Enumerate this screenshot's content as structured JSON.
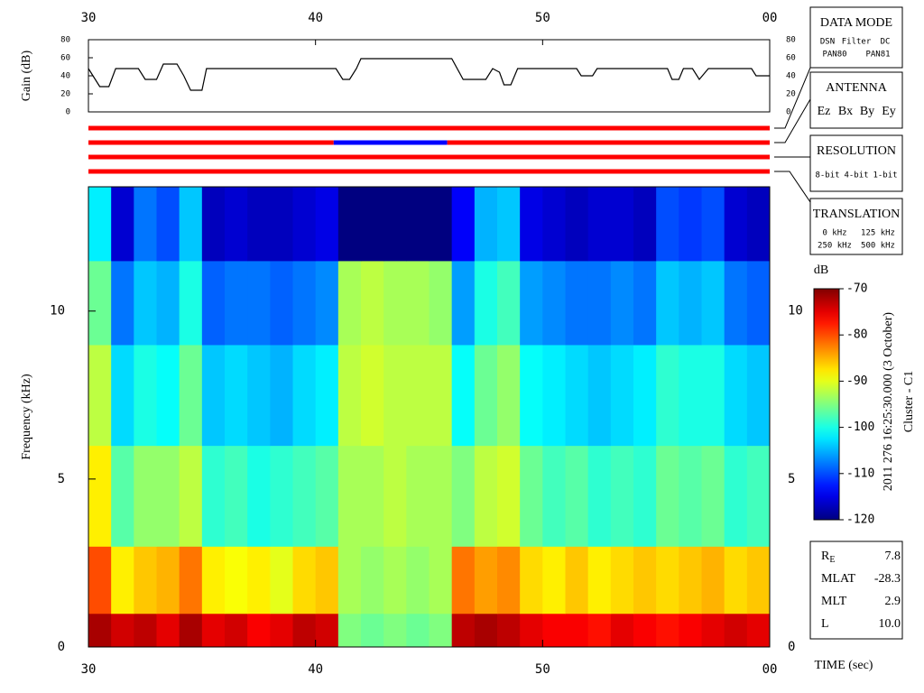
{
  "chart_data": [
    {
      "type": "line",
      "ylabel": "Gain (dB)",
      "color": "#000000",
      "x": [
        30,
        30.3,
        30.5,
        30.9,
        31.2,
        32.2,
        32.5,
        33.0,
        33.3,
        33.9,
        34.2,
        34.5,
        35.0,
        35.2,
        40.9,
        41.2,
        41.5,
        41.8,
        42.0,
        46.0,
        46.5,
        47.5,
        47.8,
        48.1,
        48.3,
        48.6,
        48.9,
        51.5,
        51.7,
        52.2,
        52.4,
        55.5,
        55.7,
        56.0,
        56.2,
        56.6,
        56.9,
        57.3,
        59.2,
        59.4,
        60
      ],
      "values": [
        48,
        36,
        28,
        28,
        48,
        48,
        36,
        36,
        53,
        53,
        40,
        24,
        24,
        48,
        48,
        36,
        36,
        48,
        59,
        59,
        36,
        36,
        48,
        44,
        30,
        30,
        48,
        48,
        40,
        40,
        48,
        48,
        36,
        36,
        48,
        48,
        36,
        48,
        48,
        40,
        40
      ],
      "xlim": [
        30,
        60
      ],
      "xticks": [
        30,
        40,
        50,
        {
          "value": 60,
          "label": "00"
        }
      ],
      "ylim": [
        0,
        80
      ],
      "yticks": [
        0,
        20,
        40,
        60,
        80
      ]
    },
    {
      "type": "strips",
      "xlim": [
        30,
        60
      ],
      "strips": [
        {
          "segments": [
            {
              "start": 30,
              "end": 60,
              "color": "#ff0000"
            }
          ]
        },
        {
          "segments": [
            {
              "start": 30,
              "end": 40.8,
              "color": "#ff0000"
            },
            {
              "start": 40.8,
              "end": 45.8,
              "color": "#0000ff"
            },
            {
              "start": 45.8,
              "end": 60,
              "color": "#ff0000"
            }
          ]
        },
        {
          "segments": [
            {
              "start": 30,
              "end": 60,
              "color": "#ff0000"
            }
          ]
        },
        {
          "segments": [
            {
              "start": 30,
              "end": 60,
              "color": "#ff0000"
            }
          ]
        }
      ]
    },
    {
      "type": "heatmap",
      "ylabel": "Frequency (kHz)",
      "xlabel": "TIME (sec)",
      "x_edges": [
        30,
        31,
        32,
        33,
        34,
        35,
        36,
        37,
        38,
        39,
        40,
        41,
        42,
        43,
        44,
        45,
        46,
        47,
        48,
        49,
        50,
        51,
        52,
        53,
        54,
        55,
        56,
        57,
        58,
        59,
        60
      ],
      "y_edges": [
        0,
        1,
        3,
        6,
        9,
        11.5,
        13.7
      ],
      "values": [
        [
          -72,
          -74,
          -73,
          -75,
          -72,
          -75,
          -74,
          -76,
          -75,
          -73,
          -74,
          -95,
          -96,
          -95,
          -96,
          -95,
          -73,
          -72,
          -73,
          -75,
          -76,
          -76,
          -77,
          -75,
          -76,
          -77,
          -76,
          -75,
          -74,
          -75
        ],
        [
          -80,
          -88,
          -86,
          -85,
          -82,
          -88,
          -89,
          -88,
          -90,
          -87,
          -86,
          -93,
          -94,
          -93,
          -94,
          -93,
          -82,
          -84,
          -83,
          -87,
          -88,
          -86,
          -88,
          -87,
          -86,
          -87,
          -86,
          -85,
          -87,
          -86
        ],
        [
          -88,
          -97,
          -94,
          -94,
          -92,
          -99,
          -98,
          -100,
          -99,
          -98,
          -97,
          -93,
          -93,
          -92,
          -93,
          -93,
          -95,
          -92,
          -91,
          -96,
          -98,
          -97,
          -99,
          -98,
          -99,
          -96,
          -97,
          -96,
          -99,
          -98
        ],
        [
          -92,
          -103,
          -100,
          -101,
          -96,
          -104,
          -103,
          -104,
          -105,
          -103,
          -102,
          -92,
          -91,
          -92,
          -92,
          -92,
          -101,
          -96,
          -94,
          -101,
          -102,
          -103,
          -104,
          -103,
          -102,
          -99,
          -100,
          -100,
          -103,
          -104
        ],
        [
          -96,
          -108,
          -104,
          -105,
          -100,
          -109,
          -108,
          -108,
          -109,
          -108,
          -107,
          -93,
          -92,
          -93,
          -93,
          -94,
          -106,
          -100,
          -98,
          -106,
          -107,
          -108,
          -108,
          -107,
          -108,
          -104,
          -105,
          -104,
          -108,
          -109
        ],
        [
          -102,
          -116,
          -108,
          -110,
          -104,
          -117,
          -116,
          -117,
          -117,
          -116,
          -115,
          -120,
          -120,
          -120,
          -120,
          -120,
          -114,
          -105,
          -104,
          -115,
          -116,
          -117,
          -116,
          -116,
          -117,
          -110,
          -111,
          -110,
          -116,
          -117
        ]
      ],
      "xlim": [
        30,
        60
      ],
      "xticks": [
        30,
        40,
        50,
        {
          "value": 60,
          "label": "00"
        }
      ],
      "ylim": [
        0,
        13.7
      ],
      "yticks": [
        0,
        5,
        10
      ],
      "colorbar": {
        "label": "dB",
        "lim": [
          -120,
          -70
        ],
        "ticks": [
          -70,
          -80,
          -90,
          -100,
          -110,
          -120
        ]
      }
    }
  ],
  "panels": [
    {
      "title": "DATA MODE",
      "items": [
        {
          "text": "DSN",
          "color": "#ff0000"
        },
        {
          "text": "Filter",
          "color": "#00cc00"
        },
        {
          "text": "DC",
          "color": "#0000ff"
        },
        {
          "text": "PAN80",
          "color": "#000000"
        },
        {
          "text": "PAN81",
          "color": "#00cccc"
        }
      ]
    },
    {
      "title": "ANTENNA",
      "items": [
        {
          "text": "Ez",
          "color": "#ff0000"
        },
        {
          "text": "Bx",
          "color": "#00cc00"
        },
        {
          "text": "By",
          "color": "#0000ff"
        },
        {
          "text": "Ey",
          "color": "#000000"
        }
      ]
    },
    {
      "title": "RESOLUTION",
      "items": [
        {
          "text": "8-bit",
          "color": "#ff0000"
        },
        {
          "text": "4-bit",
          "color": "#00cc00"
        },
        {
          "text": "1-bit",
          "color": "#0000ff"
        }
      ]
    },
    {
      "title": "TRANSLATION",
      "items": [
        {
          "text": "0 kHz",
          "color": "#ff0000"
        },
        {
          "text": "125 kHz",
          "color": "#00cc00"
        },
        {
          "text": "250 kHz",
          "color": "#0000ff"
        },
        {
          "text": "500 kHz",
          "color": "#000000"
        }
      ]
    }
  ],
  "info": {
    "time": "2011 276 16:25:30.000 (3 October)",
    "spacecraft": "Cluster - C1",
    "ephemeris": [
      {
        "label": "R",
        "sub": "E",
        "value": "7.8"
      },
      {
        "label": "MLAT",
        "value": "-28.3"
      },
      {
        "label": "MLT",
        "value": "2.9"
      },
      {
        "label": "L",
        "value": "10.0"
      }
    ]
  }
}
